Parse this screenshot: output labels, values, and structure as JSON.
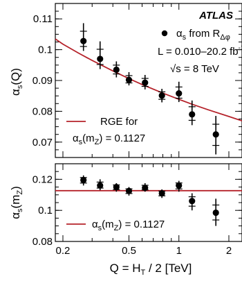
{
  "chart_data": [
    {
      "type": "scatter",
      "panel": "top",
      "title": "",
      "xlabel": "",
      "ylabel": "αs(Q)",
      "xscale": "log",
      "xlim": [
        0.18,
        2.4
      ],
      "ylim": [
        0.065,
        0.115
      ],
      "yticks": [
        "0.07",
        "0.08",
        "0.09",
        "0.1",
        "0.11"
      ],
      "grid": false,
      "annotations": {
        "experiment": "ATLAS",
        "luminosity": "L = 0.010–20.2 fb",
        "luminosity_unit_exp": "-1",
        "energy": "√s = 8 TeV"
      },
      "legend": {
        "placement": "top-right",
        "points_label": "αs from R",
        "points_label_sub": "Δφ",
        "curve_label_line1": "RGE for",
        "curve_label_line2": "αs(mZ) = 0.1127"
      },
      "series": [
        {
          "name": "αs from RΔφ",
          "kind": "points",
          "color": "#000000",
          "x": [
            0.266,
            0.335,
            0.42,
            0.5,
            0.625,
            0.79,
            1.0,
            1.2,
            1.67
          ],
          "y": [
            0.1028,
            0.097,
            0.0935,
            0.0902,
            0.0893,
            0.0851,
            0.0858,
            0.079,
            0.0725
          ],
          "err_up": [
            0.0058,
            0.0057,
            0.0027,
            0.0025,
            0.0025,
            0.0022,
            0.0038,
            0.0045,
            0.006
          ],
          "err_down": [
            0.0032,
            0.0033,
            0.0025,
            0.0018,
            0.0022,
            0.0022,
            0.0028,
            0.0035,
            0.0065
          ]
        },
        {
          "name": "RGE for αs(mZ) = 0.1127",
          "kind": "line",
          "color": "#b5222a",
          "x": [
            0.18,
            0.2,
            0.25,
            0.3,
            0.4,
            0.5,
            0.6,
            0.8,
            1.0,
            1.2,
            1.5,
            2.0,
            2.4
          ],
          "y": [
            0.1035,
            0.1018,
            0.0988,
            0.0965,
            0.0931,
            0.0906,
            0.0887,
            0.0859,
            0.0839,
            0.0823,
            0.0805,
            0.0783,
            0.0769
          ]
        }
      ]
    },
    {
      "type": "scatter",
      "panel": "bottom",
      "title": "",
      "xlabel": "Q = HT / 2  [TeV]",
      "ylabel": "αs(mZ)",
      "xscale": "log",
      "xlim": [
        0.18,
        2.4
      ],
      "ylim": [
        0.08,
        0.13
      ],
      "yticks": [
        "0.08",
        "0.1",
        "0.12"
      ],
      "xticks": [
        "0.2",
        "0.5",
        "1",
        "2"
      ],
      "grid": false,
      "legend": {
        "placement": "bottom-right",
        "curve_label": "αs(mZ) = 0.1127"
      },
      "series": [
        {
          "name": "αs(mZ)",
          "kind": "points",
          "color": "#000000",
          "x": [
            0.266,
            0.335,
            0.42,
            0.5,
            0.625,
            0.79,
            1.0,
            1.2,
            1.67
          ],
          "y": [
            0.1195,
            0.116,
            0.115,
            0.1125,
            0.1145,
            0.111,
            0.116,
            0.106,
            0.0985
          ],
          "err_up": [
            0.003,
            0.004,
            0.0025,
            0.0025,
            0.003,
            0.0025,
            0.003,
            0.005,
            0.009
          ],
          "err_down": [
            0.0035,
            0.003,
            0.003,
            0.003,
            0.0025,
            0.003,
            0.004,
            0.006,
            0.0085
          ]
        },
        {
          "name": "αs(mZ) = 0.1127",
          "kind": "line",
          "color": "#b5222a",
          "x": [
            0.18,
            2.4
          ],
          "y": [
            0.1127,
            0.1127
          ]
        }
      ]
    }
  ]
}
